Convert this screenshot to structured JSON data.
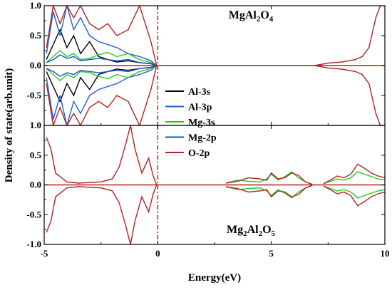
{
  "chart_data": {
    "type": "line",
    "xlabel": "Energy(eV)",
    "ylabel": "Density of state(arb.unit)",
    "xlim": [
      -5,
      10
    ],
    "ylim": [
      -1.0,
      1.0
    ],
    "x_ticks": [
      "-5",
      "0",
      "5",
      "10"
    ],
    "y_ticks": [
      "-1.0",
      "-0.5",
      "0.0",
      "0.5",
      "1.0"
    ],
    "fermi_level": 0,
    "series_legend": [
      {
        "name": "Al-3s",
        "color": "#000000"
      },
      {
        "name": "Al-3p",
        "color": "#1f5fd6"
      },
      {
        "name": "Mg-3s",
        "color": "#22cc22"
      },
      {
        "name": "Mg-2p",
        "color": "#1a4fc4"
      },
      {
        "name": "O-2p",
        "color": "#b22222"
      }
    ],
    "panels": [
      {
        "title_main": "MgAl",
        "title_sub1": "2",
        "title_mid": "O",
        "title_sub2": "4",
        "title_position": "top",
        "series": [
          {
            "name": "Al-3s",
            "points": [
              [
                -4.9,
                0.1
              ],
              [
                -4.6,
                0.35
              ],
              [
                -4.3,
                0.6
              ],
              [
                -4.0,
                0.3
              ],
              [
                -3.7,
                0.5
              ],
              [
                -3.4,
                0.2
              ],
              [
                -3.0,
                0.4
              ],
              [
                -2.6,
                0.15
              ],
              [
                -2.2,
                0.1
              ],
              [
                -1.8,
                0.06
              ],
              [
                -1.3,
                0.08
              ],
              [
                -0.8,
                0.05
              ],
              [
                -0.3,
                0.03
              ],
              [
                -0.05,
                0.0
              ]
            ]
          },
          {
            "name": "Al-3p",
            "points": [
              [
                -4.9,
                0.2
              ],
              [
                -4.6,
                0.9
              ],
              [
                -4.3,
                0.5
              ],
              [
                -4.0,
                1.0
              ],
              [
                -3.7,
                0.6
              ],
              [
                -3.4,
                0.8
              ],
              [
                -3.0,
                0.5
              ],
              [
                -2.6,
                0.4
              ],
              [
                -2.2,
                0.35
              ],
              [
                -1.8,
                0.3
              ],
              [
                -1.3,
                0.2
              ],
              [
                -0.8,
                0.15
              ],
              [
                -0.3,
                0.08
              ],
              [
                -0.05,
                0.0
              ]
            ]
          },
          {
            "name": "Mg-3s",
            "points": [
              [
                -4.9,
                0.05
              ],
              [
                -4.6,
                0.15
              ],
              [
                -4.3,
                0.25
              ],
              [
                -4.0,
                0.15
              ],
              [
                -3.7,
                0.2
              ],
              [
                -3.4,
                0.1
              ],
              [
                -3.0,
                0.12
              ],
              [
                -2.6,
                0.18
              ],
              [
                -2.2,
                0.22
              ],
              [
                -1.8,
                0.15
              ],
              [
                -1.3,
                0.2
              ],
              [
                -0.8,
                0.1
              ],
              [
                -0.3,
                0.05
              ],
              [
                -0.05,
                0.0
              ]
            ]
          },
          {
            "name": "Mg-2p",
            "points": [
              [
                -4.9,
                0.05
              ],
              [
                -4.6,
                0.1
              ],
              [
                -4.3,
                0.18
              ],
              [
                -4.0,
                0.12
              ],
              [
                -3.7,
                0.15
              ],
              [
                -3.4,
                0.08
              ],
              [
                -3.0,
                0.1
              ],
              [
                -2.6,
                0.12
              ],
              [
                -2.2,
                0.1
              ],
              [
                -1.8,
                0.08
              ],
              [
                -1.3,
                0.1
              ],
              [
                -0.8,
                0.05
              ],
              [
                -0.3,
                0.03
              ],
              [
                -0.05,
                0.0
              ]
            ]
          },
          {
            "name": "O-2p",
            "points": [
              [
                -4.9,
                0.3
              ],
              [
                -4.6,
                1.0
              ],
              [
                -4.3,
                0.7
              ],
              [
                -4.0,
                1.0
              ],
              [
                -3.7,
                0.8
              ],
              [
                -3.4,
                1.0
              ],
              [
                -3.0,
                0.7
              ],
              [
                -2.6,
                0.6
              ],
              [
                -2.2,
                0.7
              ],
              [
                -1.8,
                0.5
              ],
              [
                -1.3,
                0.6
              ],
              [
                -0.8,
                1.0
              ],
              [
                -0.3,
                0.4
              ],
              [
                -0.05,
                0.0
              ]
            ]
          },
          {
            "name": "O-2p",
            "points": [
              [
                6.9,
                0.0
              ],
              [
                7.2,
                0.02
              ],
              [
                7.5,
                0.04
              ],
              [
                7.8,
                0.05
              ],
              [
                8.1,
                0.06
              ],
              [
                8.4,
                0.08
              ],
              [
                8.7,
                0.1
              ],
              [
                9.0,
                0.15
              ],
              [
                9.3,
                0.3
              ],
              [
                9.6,
                0.8
              ],
              [
                9.8,
                1.0
              ],
              [
                10.0,
                1.0
              ]
            ]
          }
        ]
      },
      {
        "title_main": "Mg",
        "title_sub1": "2",
        "title_mid": "Al",
        "title_sub2": "2",
        "title_mid2": "O",
        "title_sub3": "5",
        "title_position": "bottom",
        "series": [
          {
            "name": "O-2p",
            "points": [
              [
                -4.9,
                0.8
              ],
              [
                -4.7,
                0.6
              ],
              [
                -4.5,
                0.2
              ],
              [
                -4.0,
                0.05
              ],
              [
                -3.5,
                0.03
              ],
              [
                -3.0,
                0.04
              ],
              [
                -2.5,
                0.05
              ],
              [
                -2.0,
                0.1
              ],
              [
                -1.7,
                0.3
              ],
              [
                -1.4,
                0.7
              ],
              [
                -1.2,
                1.0
              ],
              [
                -1.0,
                0.6
              ],
              [
                -0.7,
                0.2
              ],
              [
                -0.4,
                0.45
              ],
              [
                -0.2,
                0.15
              ],
              [
                -0.05,
                0.0
              ]
            ]
          },
          {
            "name": "Mg-3s",
            "points": [
              [
                3.0,
                0.03
              ],
              [
                3.5,
                0.08
              ],
              [
                4.0,
                0.06
              ],
              [
                4.5,
                0.05
              ],
              [
                4.8,
                0.1
              ],
              [
                5.0,
                0.18
              ],
              [
                5.3,
                0.08
              ],
              [
                5.6,
                0.14
              ],
              [
                5.9,
                0.22
              ],
              [
                6.2,
                0.12
              ],
              [
                6.5,
                0.05
              ],
              [
                6.8,
                0.01
              ]
            ]
          },
          {
            "name": "O-2p",
            "points": [
              [
                3.0,
                0.03
              ],
              [
                3.5,
                0.06
              ],
              [
                4.0,
                0.12
              ],
              [
                4.5,
                0.1
              ],
              [
                4.8,
                0.08
              ],
              [
                5.0,
                0.2
              ],
              [
                5.3,
                0.1
              ],
              [
                5.6,
                0.12
              ],
              [
                5.9,
                0.2
              ],
              [
                6.2,
                0.16
              ],
              [
                6.5,
                0.05
              ],
              [
                6.8,
                0.01
              ]
            ]
          },
          {
            "name": "Mg-3s",
            "points": [
              [
                7.3,
                0.02
              ],
              [
                7.6,
                0.06
              ],
              [
                7.9,
                0.1
              ],
              [
                8.2,
                0.08
              ],
              [
                8.5,
                0.12
              ],
              [
                8.8,
                0.22
              ],
              [
                9.1,
                0.18
              ],
              [
                9.4,
                0.14
              ],
              [
                9.7,
                0.1
              ],
              [
                10.0,
                0.08
              ]
            ]
          },
          {
            "name": "O-2p",
            "points": [
              [
                7.3,
                0.02
              ],
              [
                7.6,
                0.08
              ],
              [
                7.9,
                0.15
              ],
              [
                8.2,
                0.12
              ],
              [
                8.5,
                0.18
              ],
              [
                8.8,
                0.35
              ],
              [
                9.1,
                0.28
              ],
              [
                9.4,
                0.2
              ],
              [
                9.7,
                0.15
              ],
              [
                10.0,
                0.12
              ]
            ]
          }
        ]
      }
    ]
  }
}
